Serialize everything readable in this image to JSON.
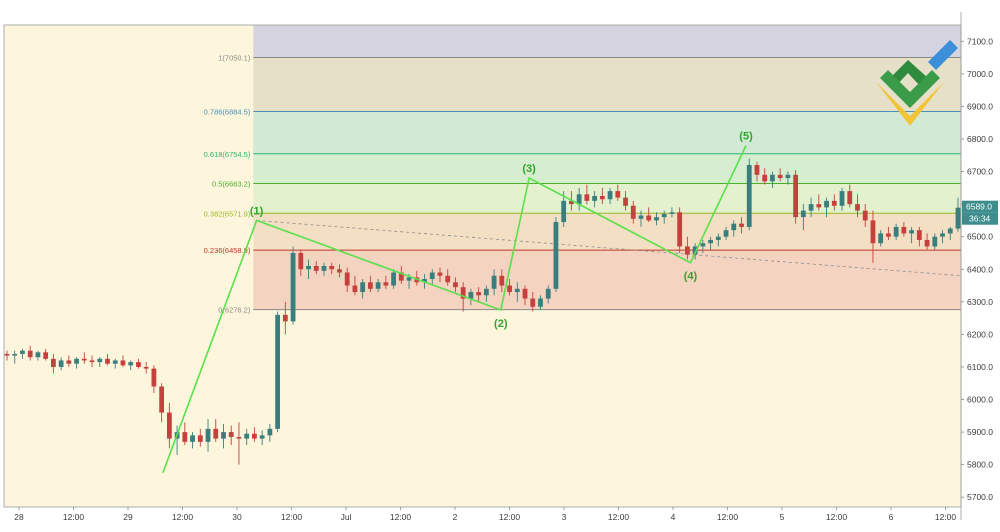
{
  "chart_data": {
    "type": "candlestick",
    "y_axis": {
      "range": [
        5670,
        7150
      ],
      "ticks": [
        7100,
        7000,
        6900,
        6800,
        6700,
        6600,
        6500,
        6400,
        6300,
        6200,
        6100,
        6000,
        5900,
        5800,
        5700
      ],
      "tick_labels": [
        "7100.0",
        "7000.0",
        "6900.0",
        "6800.0",
        "6700.0",
        "6600.0",
        "6500.0",
        "6400.0",
        "6300.0",
        "6200.0",
        "6100.0",
        "6000.0",
        "5900.0",
        "5800.0",
        "5700.0"
      ]
    },
    "x_axis": {
      "ticks": [
        {
          "label": "28",
          "day": 0.0
        },
        {
          "label": "12:00",
          "day": 0.5
        },
        {
          "label": "29",
          "day": 1.0
        },
        {
          "label": "12:00",
          "day": 1.5
        },
        {
          "label": "30",
          "day": 2.0
        },
        {
          "label": "12:00",
          "day": 2.5
        },
        {
          "label": "Jul",
          "day": 3.0
        },
        {
          "label": "12:00",
          "day": 3.5
        },
        {
          "label": "2",
          "day": 4.0
        },
        {
          "label": "12:00",
          "day": 4.5
        },
        {
          "label": "3",
          "day": 5.0
        },
        {
          "label": "12:00",
          "day": 5.5
        },
        {
          "label": "4",
          "day": 6.0
        },
        {
          "label": "12:00",
          "day": 6.5
        },
        {
          "label": "5",
          "day": 7.0
        },
        {
          "label": "12:00",
          "day": 7.5
        },
        {
          "label": "6",
          "day": 8.0
        },
        {
          "label": "12:00",
          "day": 8.5
        }
      ]
    },
    "fibonacci": {
      "start_day": 2.15,
      "levels": [
        {
          "label": "1(7050.1)",
          "price": 7050.1,
          "color": "#8a8a8a",
          "fill": "#e6e0c8"
        },
        {
          "label": "0.786(6884.5)",
          "price": 6884.5,
          "color": "#4a8fb8",
          "fill": "#d2e9d6"
        },
        {
          "label": "0.618(6754.5)",
          "price": 6754.5,
          "color": "#2bb56e",
          "fill": "#d6eecf"
        },
        {
          "label": "0.5(6663.2)",
          "price": 6663.2,
          "color": "#4caf2a",
          "fill": "#e4f1cf"
        },
        {
          "label": "0.382(6571.9)",
          "price": 6571.9,
          "color": "#9ab82a",
          "fill": "#f3dfc3"
        },
        {
          "label": "0.236(6458.9)",
          "price": 6458.9,
          "color": "#c0392b",
          "fill": "#f4d3c1"
        },
        {
          "label": "0(6276.2)",
          "price": 6276.2,
          "color": "#8a8a8a",
          "fill": null
        }
      ],
      "top_band_fill": "#d7d4e2"
    },
    "waves": [
      {
        "label": "",
        "day": 1.32,
        "price": 5775
      },
      {
        "label": "(1)",
        "day": 2.18,
        "price": 6550
      },
      {
        "label": "(2)",
        "day": 4.42,
        "price": 6275
      },
      {
        "label": "(3)",
        "day": 4.68,
        "price": 6680
      },
      {
        "label": "(4)",
        "day": 6.16,
        "price": 6420
      },
      {
        "label": "(5)",
        "day": 6.67,
        "price": 6780
      }
    ],
    "current_price": {
      "label": "6589.0",
      "price": 6589,
      "countdown": "36:34"
    },
    "candles": [
      [
        6140,
        6150,
        6120,
        6135
      ],
      [
        6135,
        6150,
        6110,
        6140
      ],
      [
        6140,
        6155,
        6125,
        6150
      ],
      [
        6150,
        6165,
        6120,
        6130
      ],
      [
        6130,
        6150,
        6120,
        6145
      ],
      [
        6145,
        6155,
        6120,
        6125
      ],
      [
        6125,
        6140,
        6080,
        6100
      ],
      [
        6100,
        6130,
        6090,
        6120
      ],
      [
        6120,
        6135,
        6100,
        6110
      ],
      [
        6110,
        6130,
        6095,
        6125
      ],
      [
        6125,
        6145,
        6110,
        6120
      ],
      [
        6120,
        6135,
        6100,
        6115
      ],
      [
        6115,
        6130,
        6100,
        6125
      ],
      [
        6125,
        6140,
        6105,
        6110
      ],
      [
        6110,
        6125,
        6095,
        6120
      ],
      [
        6120,
        6135,
        6100,
        6105
      ],
      [
        6105,
        6120,
        6090,
        6115
      ],
      [
        6115,
        6125,
        6095,
        6100
      ],
      [
        6100,
        6115,
        6080,
        6095
      ],
      [
        6095,
        6105,
        6020,
        6040
      ],
      [
        6040,
        6050,
        5930,
        5960
      ],
      [
        5960,
        5990,
        5850,
        5880
      ],
      [
        5880,
        5920,
        5830,
        5900
      ],
      [
        5900,
        5930,
        5860,
        5870
      ],
      [
        5870,
        5900,
        5850,
        5890
      ],
      [
        5890,
        5910,
        5855,
        5870
      ],
      [
        5870,
        5940,
        5840,
        5910
      ],
      [
        5910,
        5940,
        5870,
        5880
      ],
      [
        5880,
        5925,
        5850,
        5900
      ],
      [
        5900,
        5920,
        5860,
        5885
      ],
      [
        5885,
        5930,
        5800,
        5880
      ],
      [
        5880,
        5910,
        5860,
        5895
      ],
      [
        5895,
        5915,
        5870,
        5880
      ],
      [
        5880,
        5905,
        5860,
        5890
      ],
      [
        5890,
        5925,
        5870,
        5910
      ],
      [
        5910,
        6270,
        5900,
        6260
      ],
      [
        6260,
        6300,
        6200,
        6240
      ],
      [
        6240,
        6470,
        6230,
        6450
      ],
      [
        6450,
        6460,
        6380,
        6400
      ],
      [
        6400,
        6430,
        6370,
        6410
      ],
      [
        6410,
        6425,
        6385,
        6395
      ],
      [
        6395,
        6420,
        6380,
        6410
      ],
      [
        6410,
        6420,
        6385,
        6400
      ],
      [
        6400,
        6415,
        6375,
        6390
      ],
      [
        6390,
        6405,
        6330,
        6350
      ],
      [
        6350,
        6380,
        6320,
        6330
      ],
      [
        6330,
        6370,
        6310,
        6360
      ],
      [
        6360,
        6380,
        6330,
        6340
      ],
      [
        6340,
        6370,
        6330,
        6360
      ],
      [
        6360,
        6380,
        6340,
        6350
      ],
      [
        6350,
        6400,
        6340,
        6390
      ],
      [
        6390,
        6410,
        6355,
        6365
      ],
      [
        6365,
        6385,
        6340,
        6375
      ],
      [
        6375,
        6395,
        6350,
        6360
      ],
      [
        6360,
        6385,
        6340,
        6370
      ],
      [
        6370,
        6400,
        6350,
        6390
      ],
      [
        6390,
        6405,
        6360,
        6380
      ],
      [
        6380,
        6400,
        6350,
        6360
      ],
      [
        6360,
        6375,
        6330,
        6345
      ],
      [
        6345,
        6360,
        6270,
        6310
      ],
      [
        6310,
        6340,
        6290,
        6330
      ],
      [
        6330,
        6345,
        6300,
        6320
      ],
      [
        6320,
        6350,
        6300,
        6340
      ],
      [
        6340,
        6400,
        6320,
        6380
      ],
      [
        6380,
        6400,
        6330,
        6350
      ],
      [
        6350,
        6370,
        6320,
        6330
      ],
      [
        6330,
        6360,
        6300,
        6340
      ],
      [
        6340,
        6350,
        6290,
        6310
      ],
      [
        6310,
        6330,
        6270,
        6285
      ],
      [
        6285,
        6320,
        6275,
        6310
      ],
      [
        6310,
        6350,
        6295,
        6340
      ],
      [
        6340,
        6560,
        6330,
        6545
      ],
      [
        6545,
        6640,
        6530,
        6610
      ],
      [
        6610,
        6640,
        6580,
        6600
      ],
      [
        6600,
        6650,
        6580,
        6630
      ],
      [
        6630,
        6660,
        6600,
        6610
      ],
      [
        6610,
        6640,
        6590,
        6625
      ],
      [
        6625,
        6650,
        6600,
        6615
      ],
      [
        6615,
        6650,
        6600,
        6640
      ],
      [
        6640,
        6660,
        6610,
        6620
      ],
      [
        6620,
        6640,
        6580,
        6595
      ],
      [
        6595,
        6610,
        6540,
        6555
      ],
      [
        6555,
        6580,
        6530,
        6565
      ],
      [
        6565,
        6590,
        6545,
        6550
      ],
      [
        6550,
        6575,
        6535,
        6560
      ],
      [
        6560,
        6580,
        6540,
        6570
      ],
      [
        6570,
        6590,
        6560,
        6575
      ],
      [
        6575,
        6590,
        6450,
        6470
      ],
      [
        6470,
        6500,
        6430,
        6445
      ],
      [
        6445,
        6480,
        6430,
        6470
      ],
      [
        6470,
        6490,
        6450,
        6480
      ],
      [
        6480,
        6500,
        6460,
        6490
      ],
      [
        6490,
        6510,
        6470,
        6500
      ],
      [
        6500,
        6530,
        6490,
        6520
      ],
      [
        6520,
        6550,
        6500,
        6540
      ],
      [
        6540,
        6560,
        6510,
        6530
      ],
      [
        6530,
        6740,
        6520,
        6720
      ],
      [
        6720,
        6730,
        6670,
        6690
      ],
      [
        6690,
        6710,
        6660,
        6670
      ],
      [
        6670,
        6700,
        6650,
        6690
      ],
      [
        6690,
        6710,
        6670,
        6680
      ],
      [
        6680,
        6700,
        6660,
        6690
      ],
      [
        6690,
        6705,
        6540,
        6560
      ],
      [
        6560,
        6600,
        6520,
        6580
      ],
      [
        6580,
        6620,
        6560,
        6600
      ],
      [
        6600,
        6630,
        6580,
        6590
      ],
      [
        6590,
        6620,
        6560,
        6610
      ],
      [
        6610,
        6630,
        6580,
        6595
      ],
      [
        6595,
        6650,
        6580,
        6640
      ],
      [
        6640,
        6660,
        6590,
        6600
      ],
      [
        6600,
        6630,
        6560,
        6580
      ],
      [
        6580,
        6600,
        6530,
        6550
      ],
      [
        6550,
        6580,
        6420,
        6480
      ],
      [
        6480,
        6520,
        6470,
        6510
      ],
      [
        6510,
        6530,
        6490,
        6500
      ],
      [
        6500,
        6540,
        6490,
        6530
      ],
      [
        6530,
        6545,
        6500,
        6510
      ],
      [
        6510,
        6530,
        6480,
        6520
      ],
      [
        6520,
        6530,
        6470,
        6490
      ],
      [
        6490,
        6510,
        6460,
        6470
      ],
      [
        6470,
        6510,
        6460,
        6500
      ],
      [
        6500,
        6520,
        6480,
        6510
      ],
      [
        6510,
        6530,
        6490,
        6525
      ],
      [
        6525,
        6620,
        6515,
        6589
      ]
    ]
  }
}
